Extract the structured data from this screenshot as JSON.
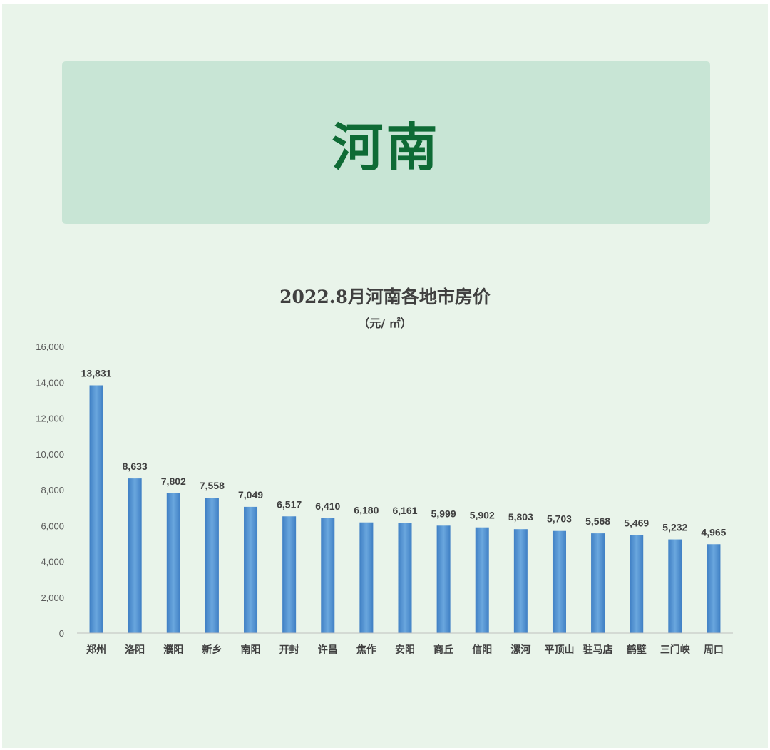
{
  "banner": {
    "title": "河南"
  },
  "colors": {
    "background": "#e9f4ea",
    "banner_bg": "#c8e5d5",
    "banner_text": "#0e6b35",
    "bar": "#5b9bd5",
    "text": "#404040"
  },
  "chart_data": {
    "type": "bar",
    "title": "2022.8月河南各地市房价",
    "subtitle": "（元/ ㎡）",
    "xlabel": "",
    "ylabel": "",
    "ylim": [
      0,
      16000
    ],
    "yticks": [
      "0",
      "2,000",
      "4,000",
      "6,000",
      "8,000",
      "10,000",
      "12,000",
      "14,000",
      "16,000"
    ],
    "grid": false,
    "categories": [
      "郑州",
      "洛阳",
      "濮阳",
      "新乡",
      "南阳",
      "开封",
      "许昌",
      "焦作",
      "安阳",
      "商丘",
      "信阳",
      "漯河",
      "平顶山",
      "驻马店",
      "鹤壁",
      "三门峡",
      "周口"
    ],
    "values": [
      13831,
      8633,
      7802,
      7558,
      7049,
      6517,
      6410,
      6180,
      6161,
      5999,
      5902,
      5803,
      5703,
      5568,
      5469,
      5232,
      4965
    ],
    "data_labels": [
      "13,831",
      "8,633",
      "7,802",
      "7,558",
      "7,049",
      "6,517",
      "6,410",
      "6,180",
      "6,161",
      "5,999",
      "5,902",
      "5,803",
      "5,703",
      "5,568",
      "5,469",
      "5,232",
      "4,965"
    ]
  }
}
